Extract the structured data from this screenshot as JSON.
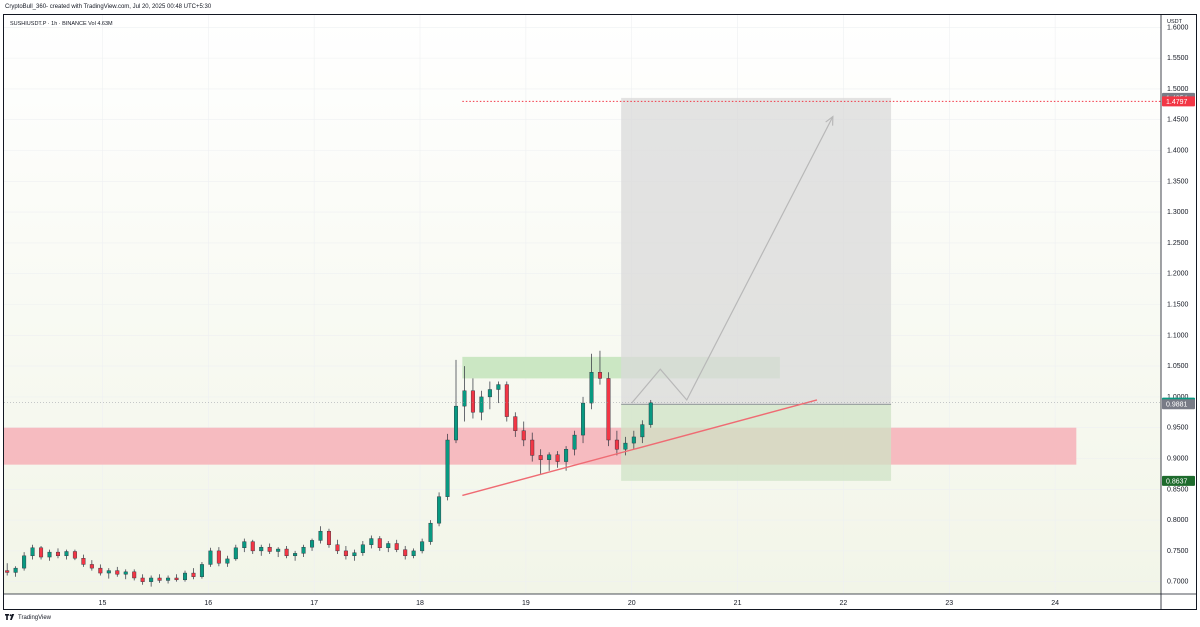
{
  "header": {
    "caption": "CryptoBull_360- created with TradingView.com, Jul 20, 2025 00:48 UTC+5:30"
  },
  "symbol_info": {
    "text": "SUSHIUSDT.P · 1h · BINANCE  Vol 4.63M"
  },
  "footer": {
    "brand": "TradingView"
  },
  "colors": {
    "up": "#089981",
    "down": "#f23645",
    "bg_gradient_top": "#ffffff",
    "bg_gradient_bottom": "#f2f5e8",
    "red_zone": "#f5b7bd",
    "green_zone": "#c8e6c0",
    "trade_gray": "#d9d9d9",
    "trade_green": "#cfe3c6",
    "trend_line": "#ef6b73",
    "arrow": "#b8b8b8",
    "target_line": "#f23645",
    "grid": "#eef0f2"
  },
  "chart_data": {
    "type": "candlestick",
    "symbol": "SUSHIUSDT.P",
    "timeframe": "1h",
    "exchange": "BINANCE",
    "volume": "4.63M",
    "axis_unit": "USDT",
    "ylim": [
      0.68,
      1.62
    ],
    "y_ticks": [
      "0.7000",
      "0.7500",
      "0.8000",
      "0.8500",
      "0.9000",
      "0.9500",
      "1.0000",
      "1.0500",
      "1.1000",
      "1.1500",
      "1.2000",
      "1.2500",
      "1.3000",
      "1.3500",
      "1.4000",
      "1.4500",
      "1.5000",
      "1.5500",
      "1.6000"
    ],
    "y_tick_values": [
      0.7,
      0.75,
      0.8,
      0.85,
      0.9,
      0.95,
      1.0,
      1.05,
      1.1,
      1.15,
      1.2,
      1.25,
      1.3,
      1.35,
      1.4,
      1.45,
      1.5,
      1.55,
      1.6
    ],
    "x_ticks": [
      "15",
      "16",
      "17",
      "18",
      "19",
      "20",
      "21",
      "22",
      "23",
      "24"
    ],
    "x_tick_days": [
      15,
      16,
      17,
      18,
      19,
      20,
      21,
      22,
      23,
      24
    ],
    "xlim_days": [
      14.07,
      25.0
    ],
    "price_labels": [
      {
        "value": 1.4854,
        "text": "1.4854",
        "color": "#787b86"
      },
      {
        "value": 1.4797,
        "text": "1.4797",
        "color": "#f23645"
      },
      {
        "value": 0.9907,
        "text": "0.9907",
        "color": "#089981"
      },
      {
        "value": 0.9881,
        "text": "0.9881",
        "color": "#787b86"
      },
      {
        "value": 0.8637,
        "text": "0.8637",
        "color": "#1e6b2d"
      }
    ],
    "zones": [
      {
        "name": "support",
        "x_from": 14.07,
        "x_to": 24.2,
        "y_from": 0.89,
        "y_to": 0.95,
        "color": "#f5b7bd"
      },
      {
        "name": "resistance",
        "x_from": 18.4,
        "x_to": 21.4,
        "y_from": 1.03,
        "y_to": 1.065,
        "color": "#c8e6c0"
      }
    ],
    "long_position": {
      "x_from": 19.9,
      "x_to": 22.45,
      "entry": 0.9881,
      "target": 1.4854,
      "stop": 0.8637
    },
    "target_line": {
      "value": 1.4797,
      "x_from": 18.4
    },
    "trend_line": {
      "x1": 18.4,
      "y1": 0.84,
      "x2": 21.75,
      "y2": 0.995
    },
    "projection_path": [
      {
        "x": 20.0,
        "y": 0.99
      },
      {
        "x": 20.27,
        "y": 1.045
      },
      {
        "x": 20.52,
        "y": 0.995
      },
      {
        "x": 21.9,
        "y": 1.455
      }
    ],
    "candles": [
      {
        "t": 14.1,
        "o": 0.718,
        "h": 0.73,
        "l": 0.71,
        "c": 0.715
      },
      {
        "t": 14.18,
        "o": 0.715,
        "h": 0.725,
        "l": 0.708,
        "c": 0.722
      },
      {
        "t": 14.26,
        "o": 0.722,
        "h": 0.748,
        "l": 0.718,
        "c": 0.742
      },
      {
        "t": 14.34,
        "o": 0.742,
        "h": 0.76,
        "l": 0.736,
        "c": 0.755
      },
      {
        "t": 14.42,
        "o": 0.755,
        "h": 0.758,
        "l": 0.736,
        "c": 0.74
      },
      {
        "t": 14.5,
        "o": 0.74,
        "h": 0.752,
        "l": 0.734,
        "c": 0.748
      },
      {
        "t": 14.58,
        "o": 0.748,
        "h": 0.754,
        "l": 0.738,
        "c": 0.742
      },
      {
        "t": 14.66,
        "o": 0.742,
        "h": 0.752,
        "l": 0.736,
        "c": 0.749
      },
      {
        "t": 14.74,
        "o": 0.749,
        "h": 0.752,
        "l": 0.735,
        "c": 0.738
      },
      {
        "t": 14.82,
        "o": 0.738,
        "h": 0.744,
        "l": 0.724,
        "c": 0.728
      },
      {
        "t": 14.9,
        "o": 0.728,
        "h": 0.735,
        "l": 0.718,
        "c": 0.722
      },
      {
        "t": 14.98,
        "o": 0.722,
        "h": 0.728,
        "l": 0.71,
        "c": 0.714
      },
      {
        "t": 15.06,
        "o": 0.714,
        "h": 0.722,
        "l": 0.705,
        "c": 0.718
      },
      {
        "t": 15.14,
        "o": 0.718,
        "h": 0.724,
        "l": 0.708,
        "c": 0.712
      },
      {
        "t": 15.22,
        "o": 0.712,
        "h": 0.72,
        "l": 0.704,
        "c": 0.716
      },
      {
        "t": 15.3,
        "o": 0.716,
        "h": 0.72,
        "l": 0.702,
        "c": 0.706
      },
      {
        "t": 15.38,
        "o": 0.706,
        "h": 0.712,
        "l": 0.695,
        "c": 0.7
      },
      {
        "t": 15.46,
        "o": 0.7,
        "h": 0.71,
        "l": 0.692,
        "c": 0.706
      },
      {
        "t": 15.54,
        "o": 0.706,
        "h": 0.712,
        "l": 0.698,
        "c": 0.702
      },
      {
        "t": 15.62,
        "o": 0.702,
        "h": 0.71,
        "l": 0.697,
        "c": 0.706
      },
      {
        "t": 15.7,
        "o": 0.706,
        "h": 0.712,
        "l": 0.7,
        "c": 0.703
      },
      {
        "t": 15.78,
        "o": 0.703,
        "h": 0.718,
        "l": 0.7,
        "c": 0.714
      },
      {
        "t": 15.86,
        "o": 0.714,
        "h": 0.722,
        "l": 0.704,
        "c": 0.708
      },
      {
        "t": 15.94,
        "o": 0.708,
        "h": 0.732,
        "l": 0.705,
        "c": 0.728
      },
      {
        "t": 16.02,
        "o": 0.728,
        "h": 0.755,
        "l": 0.724,
        "c": 0.75
      },
      {
        "t": 16.1,
        "o": 0.75,
        "h": 0.756,
        "l": 0.725,
        "c": 0.73
      },
      {
        "t": 16.18,
        "o": 0.73,
        "h": 0.742,
        "l": 0.724,
        "c": 0.737
      },
      {
        "t": 16.26,
        "o": 0.737,
        "h": 0.76,
        "l": 0.734,
        "c": 0.755
      },
      {
        "t": 16.34,
        "o": 0.755,
        "h": 0.77,
        "l": 0.748,
        "c": 0.765
      },
      {
        "t": 16.42,
        "o": 0.765,
        "h": 0.768,
        "l": 0.745,
        "c": 0.75
      },
      {
        "t": 16.5,
        "o": 0.75,
        "h": 0.76,
        "l": 0.742,
        "c": 0.756
      },
      {
        "t": 16.58,
        "o": 0.756,
        "h": 0.762,
        "l": 0.745,
        "c": 0.749
      },
      {
        "t": 16.66,
        "o": 0.749,
        "h": 0.756,
        "l": 0.74,
        "c": 0.753
      },
      {
        "t": 16.74,
        "o": 0.753,
        "h": 0.758,
        "l": 0.738,
        "c": 0.742
      },
      {
        "t": 16.82,
        "o": 0.742,
        "h": 0.75,
        "l": 0.734,
        "c": 0.746
      },
      {
        "t": 16.9,
        "o": 0.746,
        "h": 0.76,
        "l": 0.74,
        "c": 0.756
      },
      {
        "t": 16.98,
        "o": 0.756,
        "h": 0.77,
        "l": 0.75,
        "c": 0.767
      },
      {
        "t": 17.06,
        "o": 0.767,
        "h": 0.79,
        "l": 0.762,
        "c": 0.782
      },
      {
        "t": 17.14,
        "o": 0.782,
        "h": 0.786,
        "l": 0.755,
        "c": 0.76
      },
      {
        "t": 17.22,
        "o": 0.76,
        "h": 0.768,
        "l": 0.745,
        "c": 0.75
      },
      {
        "t": 17.3,
        "o": 0.75,
        "h": 0.758,
        "l": 0.736,
        "c": 0.742
      },
      {
        "t": 17.38,
        "o": 0.742,
        "h": 0.752,
        "l": 0.734,
        "c": 0.747
      },
      {
        "t": 17.46,
        "o": 0.747,
        "h": 0.766,
        "l": 0.742,
        "c": 0.76
      },
      {
        "t": 17.54,
        "o": 0.76,
        "h": 0.775,
        "l": 0.754,
        "c": 0.77
      },
      {
        "t": 17.62,
        "o": 0.77,
        "h": 0.774,
        "l": 0.75,
        "c": 0.755
      },
      {
        "t": 17.7,
        "o": 0.755,
        "h": 0.766,
        "l": 0.748,
        "c": 0.762
      },
      {
        "t": 17.78,
        "o": 0.762,
        "h": 0.768,
        "l": 0.748,
        "c": 0.752
      },
      {
        "t": 17.86,
        "o": 0.752,
        "h": 0.758,
        "l": 0.736,
        "c": 0.742
      },
      {
        "t": 17.94,
        "o": 0.742,
        "h": 0.754,
        "l": 0.738,
        "c": 0.75
      },
      {
        "t": 18.02,
        "o": 0.75,
        "h": 0.77,
        "l": 0.746,
        "c": 0.765
      },
      {
        "t": 18.1,
        "o": 0.765,
        "h": 0.8,
        "l": 0.76,
        "c": 0.795
      },
      {
        "t": 18.18,
        "o": 0.795,
        "h": 0.845,
        "l": 0.79,
        "c": 0.838
      },
      {
        "t": 18.26,
        "o": 0.838,
        "h": 0.94,
        "l": 0.832,
        "c": 0.93
      },
      {
        "t": 18.34,
        "o": 0.93,
        "h": 1.06,
        "l": 0.925,
        "c": 0.985
      },
      {
        "t": 18.42,
        "o": 0.985,
        "h": 1.05,
        "l": 0.96,
        "c": 1.01
      },
      {
        "t": 18.5,
        "o": 1.01,
        "h": 1.03,
        "l": 0.965,
        "c": 0.975
      },
      {
        "t": 18.58,
        "o": 0.975,
        "h": 1.01,
        "l": 0.962,
        "c": 1.0
      },
      {
        "t": 18.66,
        "o": 1.0,
        "h": 1.025,
        "l": 0.98,
        "c": 1.012
      },
      {
        "t": 18.74,
        "o": 1.012,
        "h": 1.025,
        "l": 0.99,
        "c": 1.02
      },
      {
        "t": 18.82,
        "o": 1.02,
        "h": 1.025,
        "l": 0.96,
        "c": 0.968
      },
      {
        "t": 18.9,
        "o": 0.968,
        "h": 0.975,
        "l": 0.935,
        "c": 0.945
      },
      {
        "t": 18.98,
        "o": 0.945,
        "h": 0.96,
        "l": 0.92,
        "c": 0.93
      },
      {
        "t": 19.06,
        "o": 0.93,
        "h": 0.942,
        "l": 0.895,
        "c": 0.905
      },
      {
        "t": 19.14,
        "o": 0.905,
        "h": 0.915,
        "l": 0.875,
        "c": 0.898
      },
      {
        "t": 19.22,
        "o": 0.898,
        "h": 0.91,
        "l": 0.88,
        "c": 0.906
      },
      {
        "t": 19.3,
        "o": 0.906,
        "h": 0.912,
        "l": 0.885,
        "c": 0.895
      },
      {
        "t": 19.38,
        "o": 0.895,
        "h": 0.92,
        "l": 0.88,
        "c": 0.915
      },
      {
        "t": 19.46,
        "o": 0.915,
        "h": 0.945,
        "l": 0.905,
        "c": 0.938
      },
      {
        "t": 19.54,
        "o": 0.938,
        "h": 1.0,
        "l": 0.925,
        "c": 0.99
      },
      {
        "t": 19.62,
        "o": 0.99,
        "h": 1.07,
        "l": 0.98,
        "c": 1.04
      },
      {
        "t": 19.7,
        "o": 1.04,
        "h": 1.075,
        "l": 1.02,
        "c": 1.03
      },
      {
        "t": 19.78,
        "o": 1.03,
        "h": 1.04,
        "l": 0.92,
        "c": 0.93
      },
      {
        "t": 19.86,
        "o": 0.93,
        "h": 0.945,
        "l": 0.905,
        "c": 0.915
      },
      {
        "t": 19.94,
        "o": 0.915,
        "h": 0.935,
        "l": 0.905,
        "c": 0.925
      },
      {
        "t": 20.02,
        "o": 0.925,
        "h": 0.945,
        "l": 0.915,
        "c": 0.935
      },
      {
        "t": 20.1,
        "o": 0.935,
        "h": 0.962,
        "l": 0.925,
        "c": 0.955
      },
      {
        "t": 20.18,
        "o": 0.955,
        "h": 0.995,
        "l": 0.95,
        "c": 0.9907
      }
    ]
  }
}
